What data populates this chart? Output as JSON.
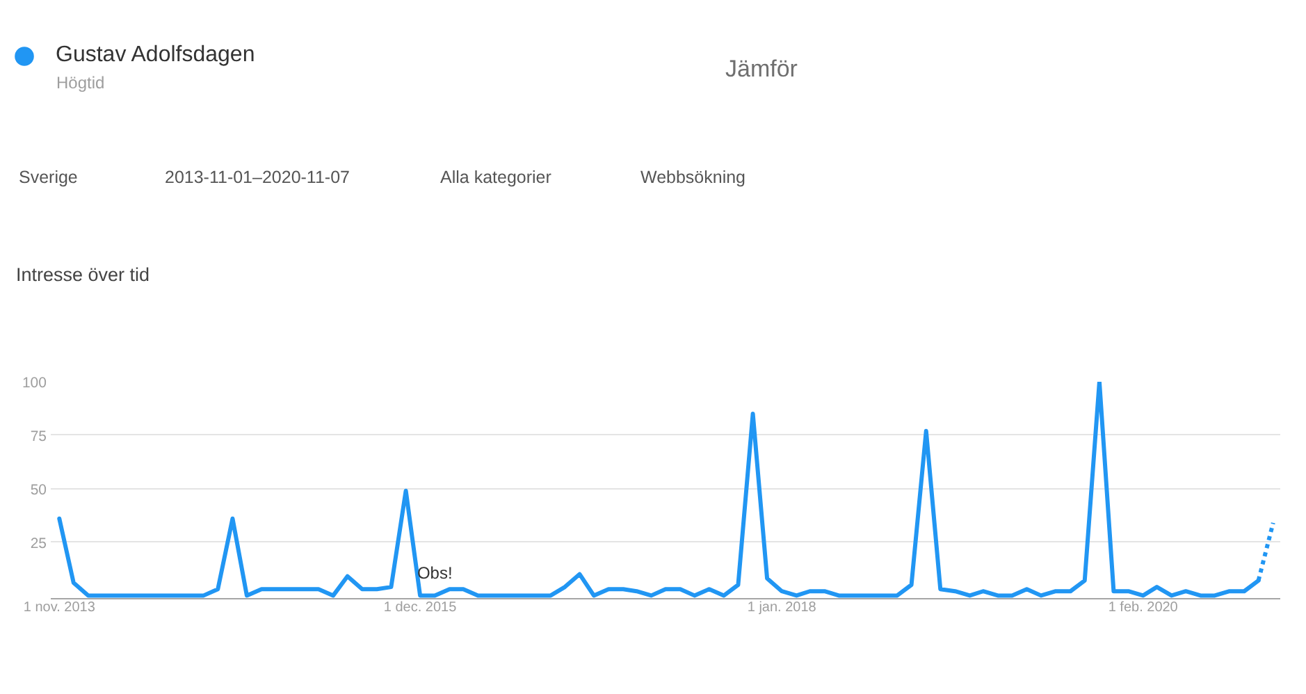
{
  "chart_data": {
    "type": "line",
    "title": "Intresse över tid",
    "x": [
      "2013-11",
      "2013-12",
      "2014-01",
      "2014-02",
      "2014-03",
      "2014-04",
      "2014-05",
      "2014-06",
      "2014-07",
      "2014-08",
      "2014-09",
      "2014-10",
      "2014-11",
      "2014-12",
      "2015-01",
      "2015-02",
      "2015-03",
      "2015-04",
      "2015-05",
      "2015-06",
      "2015-07",
      "2015-08",
      "2015-09",
      "2015-10",
      "2015-11",
      "2015-12",
      "2016-01",
      "2016-02",
      "2016-03",
      "2016-04",
      "2016-05",
      "2016-06",
      "2016-07",
      "2016-08",
      "2016-09",
      "2016-10",
      "2016-11",
      "2016-12",
      "2017-01",
      "2017-02",
      "2017-03",
      "2017-04",
      "2017-05",
      "2017-06",
      "2017-07",
      "2017-08",
      "2017-09",
      "2017-10",
      "2017-11",
      "2017-12",
      "2018-01",
      "2018-02",
      "2018-03",
      "2018-04",
      "2018-05",
      "2018-06",
      "2018-07",
      "2018-08",
      "2018-09",
      "2018-10",
      "2018-11",
      "2018-12",
      "2019-01",
      "2019-02",
      "2019-03",
      "2019-04",
      "2019-05",
      "2019-06",
      "2019-07",
      "2019-08",
      "2019-09",
      "2019-10",
      "2019-11",
      "2019-12",
      "2020-01",
      "2020-02",
      "2020-03",
      "2020-04",
      "2020-05",
      "2020-06",
      "2020-07",
      "2020-08",
      "2020-09",
      "2020-10",
      "2020-11"
    ],
    "series": [
      {
        "name": "Gustav Adolfsdagen",
        "color": "#2196f3",
        "values": [
          36,
          6,
          0,
          0,
          0,
          0,
          0,
          0,
          0,
          0,
          0,
          3,
          36,
          0,
          3,
          3,
          3,
          3,
          3,
          0,
          9,
          3,
          3,
          4,
          49,
          0,
          0,
          3,
          3,
          0,
          0,
          0,
          0,
          0,
          0,
          4,
          10,
          0,
          3,
          3,
          2,
          0,
          3,
          3,
          0,
          3,
          0,
          5,
          85,
          8,
          2,
          0,
          2,
          2,
          0,
          0,
          0,
          0,
          0,
          5,
          77,
          3,
          2,
          0,
          2,
          0,
          0,
          3,
          0,
          2,
          2,
          7,
          100,
          2,
          2,
          0,
          4,
          0,
          2,
          0,
          0,
          2,
          2,
          7,
          null
        ]
      },
      {
        "color": "#2196f3",
        "line_style": "dotted",
        "values": [
          null,
          null,
          null,
          null,
          null,
          null,
          null,
          null,
          null,
          null,
          null,
          null,
          null,
          null,
          null,
          null,
          null,
          null,
          null,
          null,
          null,
          null,
          null,
          null,
          null,
          null,
          null,
          null,
          null,
          null,
          null,
          null,
          null,
          null,
          null,
          null,
          null,
          null,
          null,
          null,
          null,
          null,
          null,
          null,
          null,
          null,
          null,
          null,
          null,
          null,
          null,
          null,
          null,
          null,
          null,
          null,
          null,
          null,
          null,
          null,
          null,
          null,
          null,
          null,
          null,
          null,
          null,
          null,
          null,
          null,
          null,
          null,
          null,
          null,
          null,
          null,
          null,
          null,
          null,
          null,
          null,
          null,
          null,
          7,
          34
        ]
      }
    ],
    "xlim": [
      "2013-10-14",
      "2020-11-16"
    ],
    "xticks": [
      {
        "value": "2013-11-01",
        "label": "1 nov. 2013"
      },
      {
        "value": "2015-12-01",
        "label": "1 dec. 2015"
      },
      {
        "value": "2018-01-01",
        "label": "1 jan. 2018"
      },
      {
        "value": "2020-02-01",
        "label": "1 feb. 2020"
      }
    ],
    "ylim": [
      -1.5,
      100
    ],
    "yticks": [
      25,
      50,
      75,
      100
    ],
    "grid": "y",
    "legend": "top left",
    "line_style": "solid",
    "annotations": [
      "Högtid",
      "Jämför",
      "Sverige",
      "2013-11-01–2020-11-07",
      "Alla kategorier",
      "Webbsökning",
      {
        "text": "Obs!",
        "x": "2016-01",
        "y": 0
      }
    ]
  }
}
